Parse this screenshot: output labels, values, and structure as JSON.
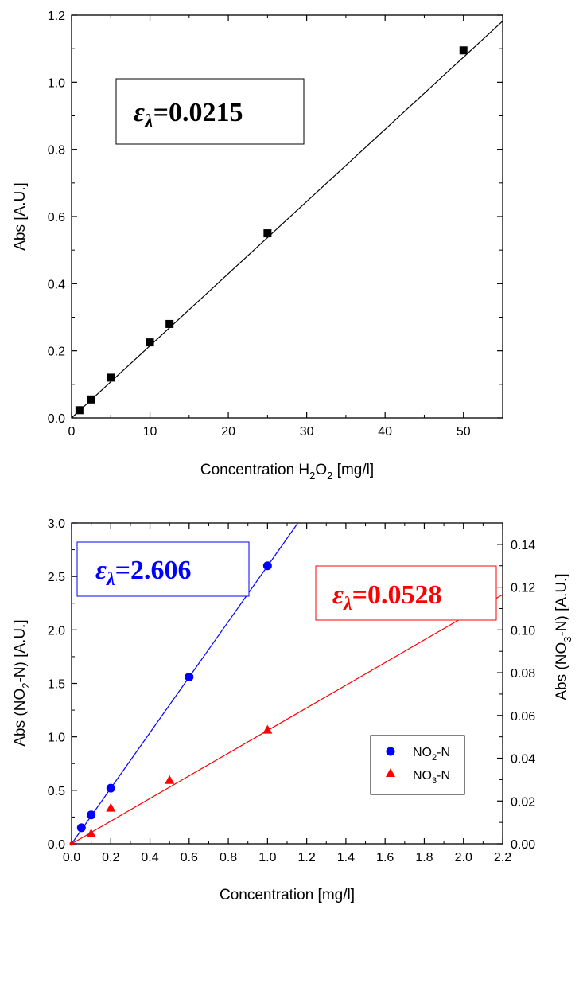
{
  "chart_data": [
    {
      "type": "scatter",
      "xlabel": "Concentration H2O2 [mg/l]",
      "xlabel_parts": {
        "pre": "Concentration H",
        "sub1": "2",
        "mid": "O",
        "sub2": "2",
        "post": " [mg/l]"
      },
      "ylabel": "Abs [A.U.]",
      "xlim": [
        0,
        55
      ],
      "ylim": [
        0,
        1.2
      ],
      "xticks": [
        0,
        10,
        20,
        30,
        40,
        50
      ],
      "yticks": [
        0.0,
        0.2,
        0.4,
        0.6,
        0.8,
        1.0,
        1.2
      ],
      "ytick_labels": [
        "0.0",
        "0.2",
        "0.4",
        "0.6",
        "0.8",
        "1.0",
        "1.2"
      ],
      "series": [
        {
          "marker": "square",
          "color": "#000000",
          "x": [
            1,
            2.5,
            5,
            10,
            12.5,
            25,
            50
          ],
          "y": [
            0.023,
            0.055,
            0.12,
            0.225,
            0.28,
            0.55,
            1.095
          ]
        }
      ],
      "fit_line": {
        "color": "#000000",
        "x": [
          0,
          55
        ],
        "y": [
          0.0,
          1.182
        ]
      },
      "annotation": {
        "symbol": "ε",
        "sub": "λ",
        "text": "=0.0215",
        "color": "#000000"
      }
    },
    {
      "type": "scatter",
      "xlabel": "Concentration [mg/l]",
      "ylabel_left_parts": {
        "pre": "Abs (NO",
        "sub": "2",
        "post": "-N) [A.U.]"
      },
      "ylabel_right_parts": {
        "pre": "Abs (NO",
        "sub": "3",
        "post": "-N) [A.U.]"
      },
      "xlim": [
        0,
        2.2
      ],
      "ylim_left": [
        0,
        3.0
      ],
      "ylim_right": [
        0,
        0.15
      ],
      "xticks": [
        0.0,
        0.2,
        0.4,
        0.6,
        0.8,
        1.0,
        1.2,
        1.4,
        1.6,
        1.8,
        2.0,
        2.2
      ],
      "xtick_labels": [
        "0.0",
        "0.2",
        "0.4",
        "0.6",
        "0.8",
        "1.0",
        "1.2",
        "1.4",
        "1.6",
        "1.8",
        "2.0",
        "2.2"
      ],
      "yticks_left": [
        0.0,
        0.5,
        1.0,
        1.5,
        2.0,
        2.5,
        3.0
      ],
      "ytick_labels_left": [
        "0.0",
        "0.5",
        "1.0",
        "1.5",
        "2.0",
        "2.5",
        "3.0"
      ],
      "yticks_right": [
        0.0,
        0.02,
        0.04,
        0.06,
        0.08,
        0.1,
        0.12,
        0.14
      ],
      "ytick_labels_right": [
        "0.00",
        "0.02",
        "0.04",
        "0.06",
        "0.08",
        "0.10",
        "0.12",
        "0.14"
      ],
      "series": [
        {
          "name": "NO2-N",
          "legend_parts": {
            "pre": "NO",
            "sub": "2",
            "post": "-N"
          },
          "marker": "circle",
          "color": "#0000ff",
          "axis": "left",
          "x": [
            0,
            0.05,
            0.1,
            0.2,
            0.6,
            1.0
          ],
          "y": [
            0.0,
            0.15,
            0.27,
            0.52,
            1.56,
            2.6
          ]
        },
        {
          "name": "NO3-N",
          "legend_parts": {
            "pre": "NO",
            "sub": "3",
            "post": "-N"
          },
          "marker": "triangle",
          "color": "#ff0000",
          "axis": "right",
          "x": [
            0,
            0.1,
            0.2,
            0.5,
            1.0,
            2.0
          ],
          "y": [
            0.0,
            0.0045,
            0.0165,
            0.0295,
            0.053,
            0.107
          ]
        }
      ],
      "fit_lines": [
        {
          "color": "#0000ff",
          "axis": "left",
          "x": [
            0,
            1.155
          ],
          "y": [
            0,
            3.0
          ]
        },
        {
          "color": "#ff0000",
          "axis": "right",
          "x": [
            0,
            2.2
          ],
          "y": [
            0,
            0.1165
          ]
        }
      ],
      "annotations": [
        {
          "symbol": "ε",
          "sub": "λ",
          "text": "=2.606",
          "color": "#0000ff"
        },
        {
          "symbol": "ε",
          "sub": "λ",
          "text": "=0.0528",
          "color": "#ff0000"
        }
      ],
      "legend_position": "center-right"
    }
  ]
}
